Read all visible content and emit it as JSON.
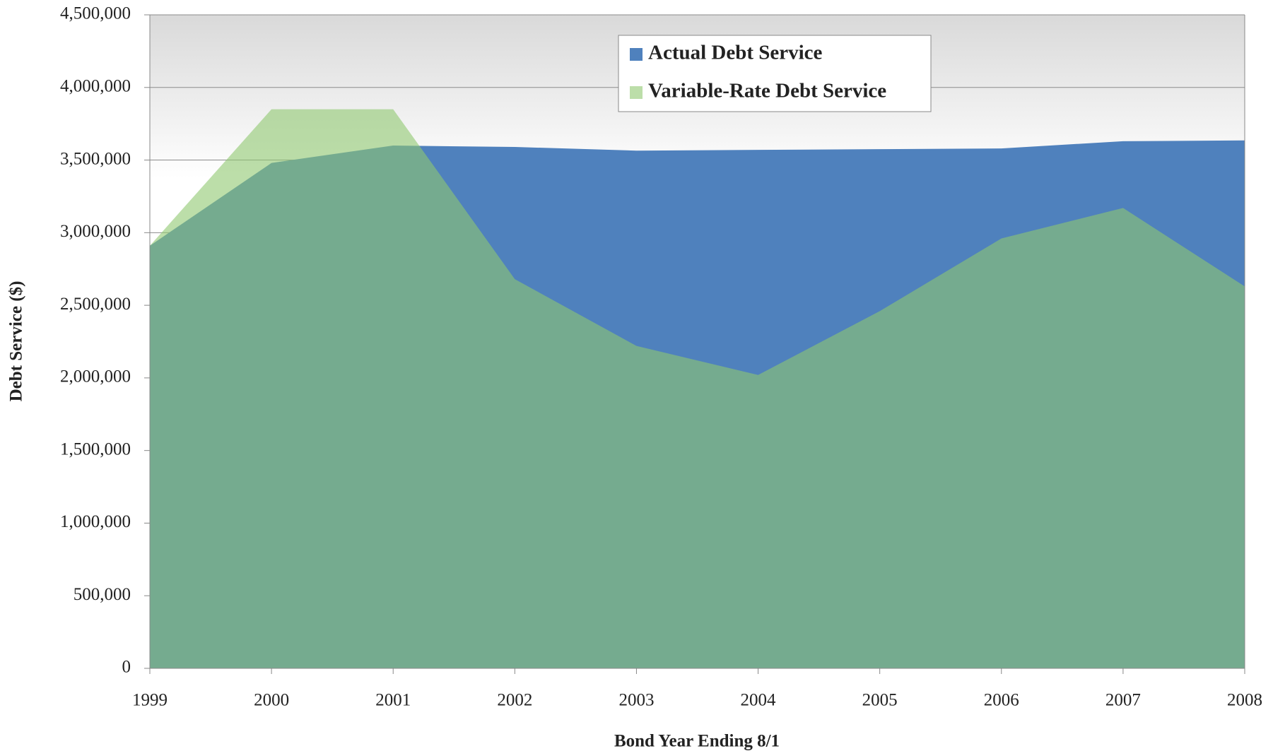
{
  "chart_data": {
    "type": "area",
    "x_label": "Bond Year Ending 8/1",
    "y_label": "Debt Service ($)",
    "categories": [
      "1999",
      "2000",
      "2001",
      "2002",
      "2003",
      "2004",
      "2005",
      "2006",
      "2007",
      "2008"
    ],
    "series": [
      {
        "name": "Actual Debt Service",
        "color": "#4f81bd",
        "values": [
          2910000,
          3480000,
          3600000,
          3590000,
          3565000,
          3570000,
          3575000,
          3580000,
          3630000,
          3635000
        ]
      },
      {
        "name": "Variable-Rate Debt Service",
        "color": "#8fc870",
        "values": [
          2910000,
          3850000,
          3850000,
          2680000,
          2220000,
          2020000,
          2460000,
          2960000,
          3170000,
          2630000
        ]
      }
    ],
    "ylim": [
      0,
      4500000
    ],
    "yticks": [
      0,
      {
        "value": 500000,
        "label": "500,000"
      },
      {
        "value": 1000000,
        "label": "1,000,000"
      },
      {
        "value": 1500000,
        "label": "1,500,000"
      },
      {
        "value": 2000000,
        "label": "2,000,000"
      },
      {
        "value": 2500000,
        "label": "2,500,000"
      },
      {
        "value": 3000000,
        "label": "3,000,000"
      },
      {
        "value": 3500000,
        "label": "3,500,000"
      },
      {
        "value": 4000000,
        "label": "4,000,000"
      },
      {
        "value": 4500000,
        "label": "4,500,000"
      }
    ],
    "grid": true,
    "legend": "top"
  }
}
